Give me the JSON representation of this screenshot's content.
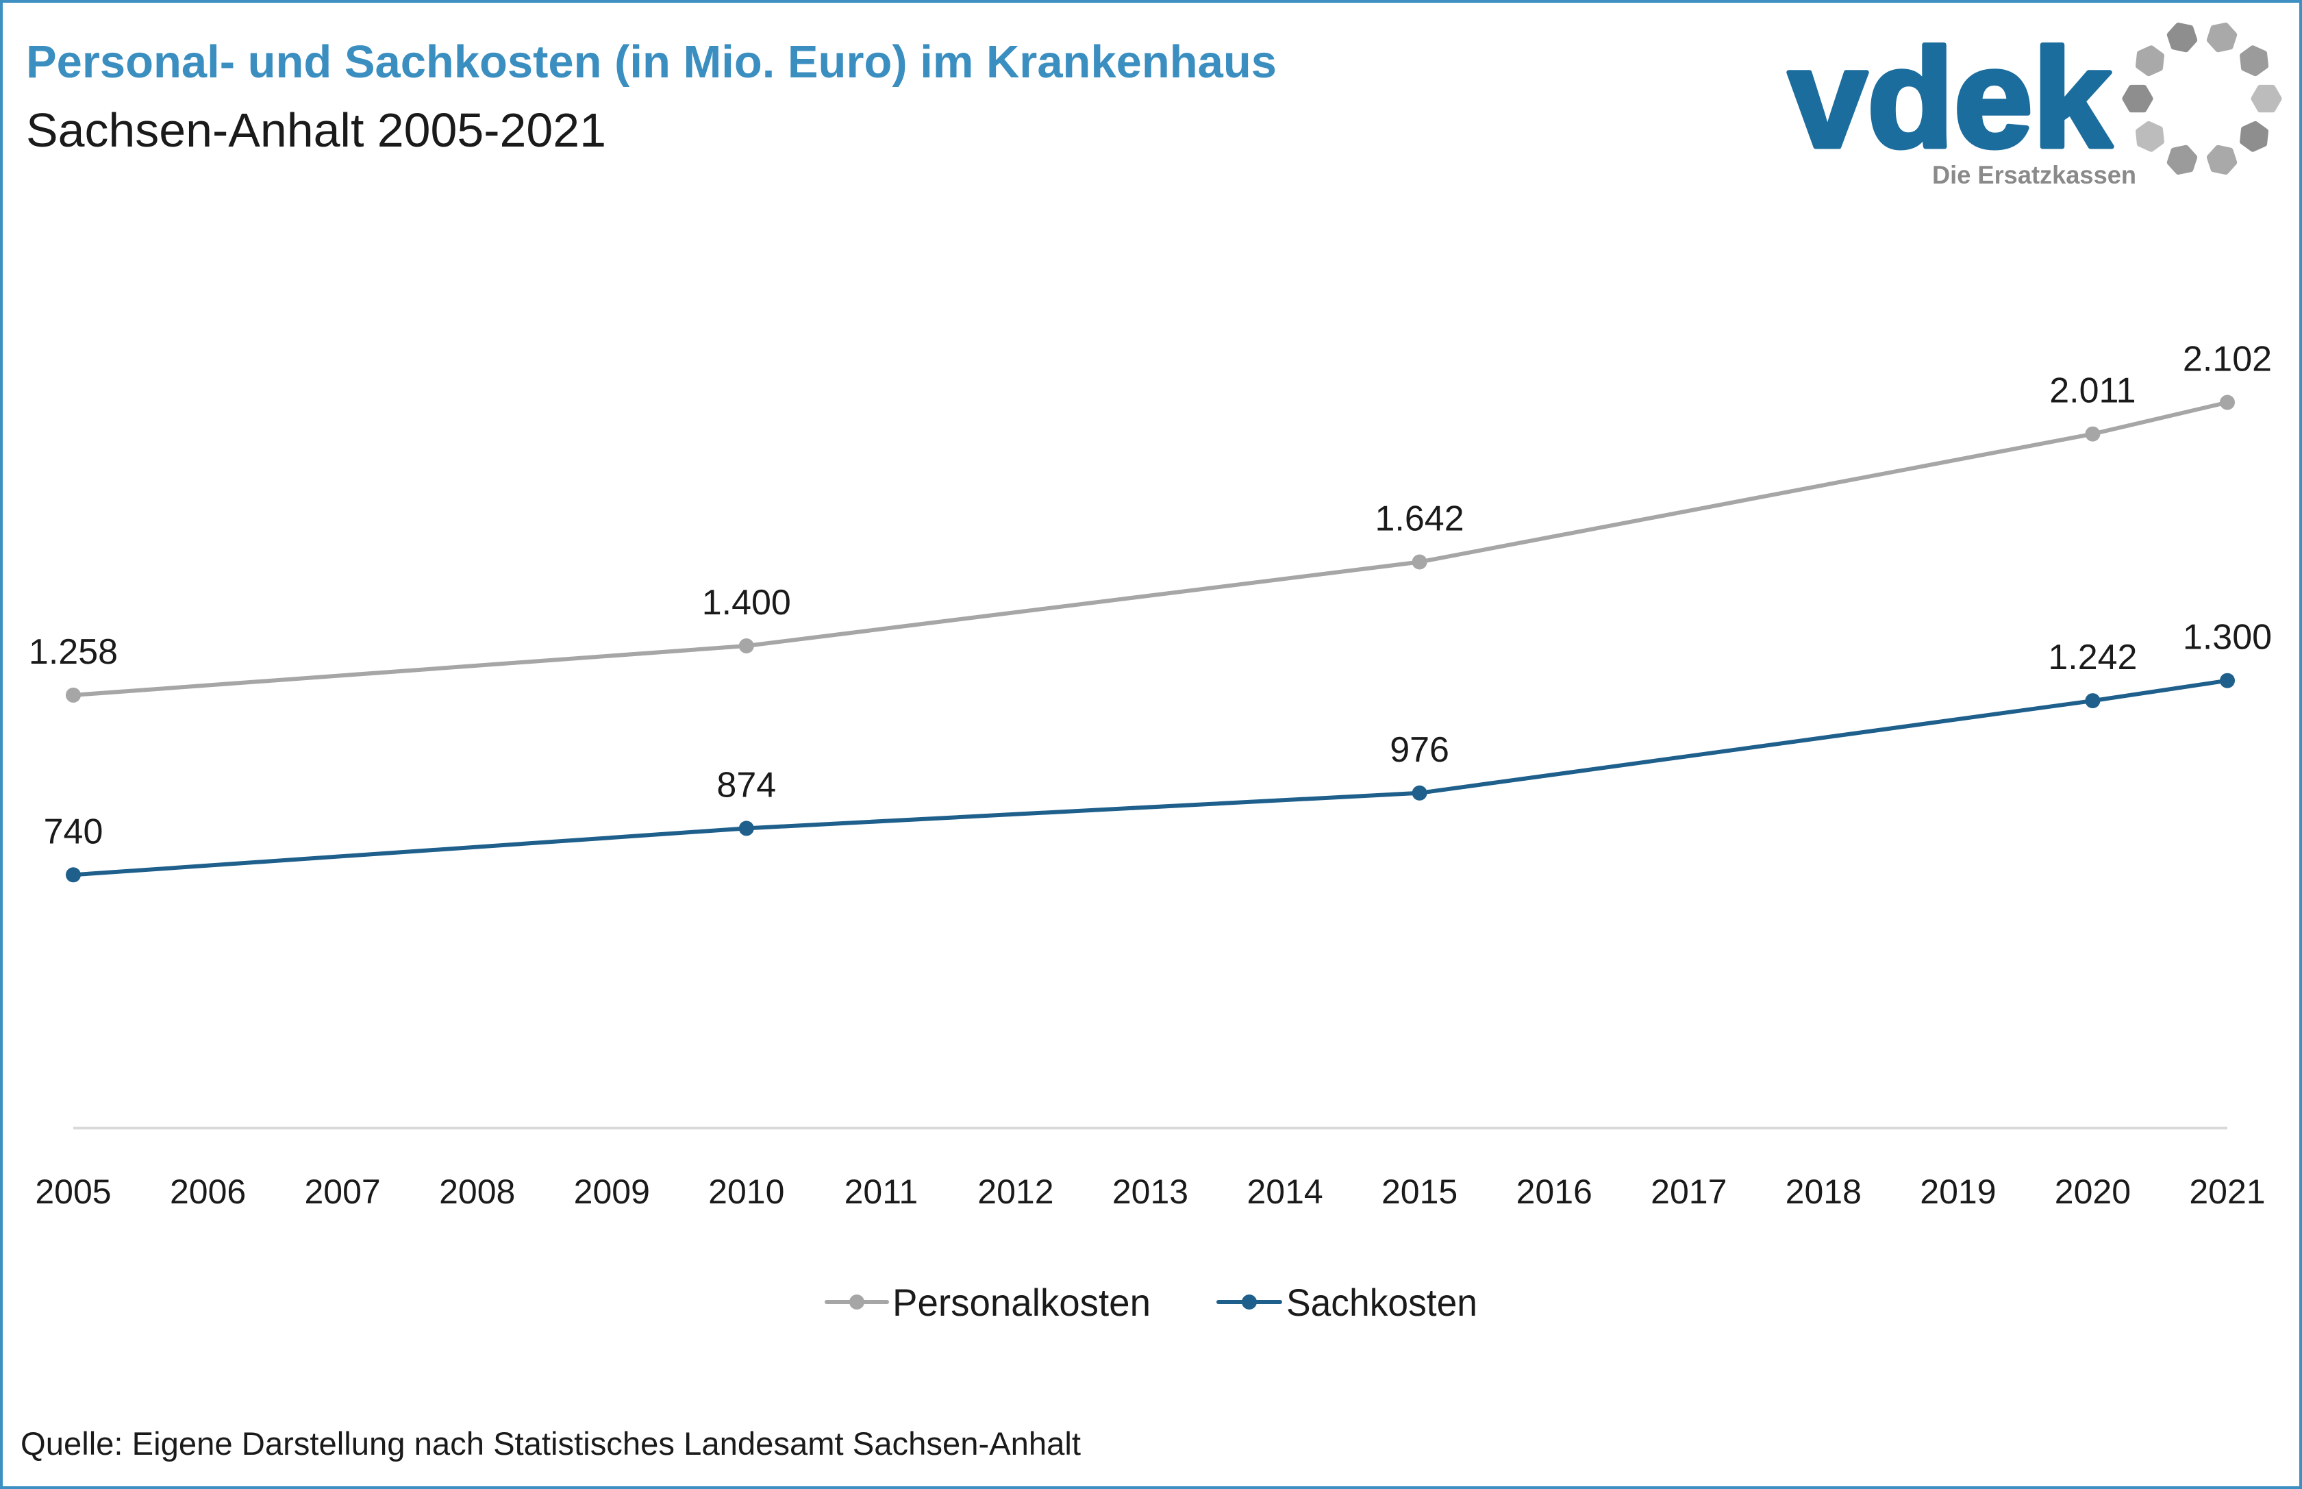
{
  "chart_data": {
    "type": "line",
    "title": "Personal- und Sachkosten (in Mio. Euro) im Krankenhaus",
    "subtitle": "Sachsen-Anhalt 2005-2021",
    "categories": [
      "2005",
      "2006",
      "2007",
      "2008",
      "2009",
      "2010",
      "2011",
      "2012",
      "2013",
      "2014",
      "2015",
      "2016",
      "2017",
      "2018",
      "2019",
      "2020",
      "2021"
    ],
    "ylim": [
      0,
      2500
    ],
    "y_axis_visible": false,
    "grid": false,
    "data_labels": true,
    "legend_position": "bottom",
    "series": [
      {
        "name": "Personalkosten",
        "color": "#a6a6a6",
        "points": [
          {
            "x": "2005",
            "y": 1258,
            "label": "1.258"
          },
          {
            "x": "2010",
            "y": 1400,
            "label": "1.400"
          },
          {
            "x": "2015",
            "y": 1642,
            "label": "1.642"
          },
          {
            "x": "2020",
            "y": 2011,
            "label": "2.011"
          },
          {
            "x": "2021",
            "y": 2102,
            "label": "2.102"
          }
        ]
      },
      {
        "name": "Sachkosten",
        "color": "#1e5f8c",
        "points": [
          {
            "x": "2005",
            "y": 740,
            "label": "740"
          },
          {
            "x": "2010",
            "y": 874,
            "label": "874"
          },
          {
            "x": "2015",
            "y": 976,
            "label": "976"
          },
          {
            "x": "2020",
            "y": 1242,
            "label": "1.242"
          },
          {
            "x": "2021",
            "y": 1300,
            "label": "1.300"
          }
        ]
      }
    ],
    "source": "Quelle: Eigene Darstellung nach Statistisches Landesamt Sachsen-Anhalt"
  },
  "logo": {
    "wordmark": "vdek",
    "tagline": "Die Ersatzkassen",
    "color": "#1b6d9e",
    "tagline_color": "#8a8a8a",
    "ring_colors": [
      "#8e8e8e",
      "#a9a9a9",
      "#9b9b9b",
      "#bcbcbc"
    ]
  },
  "colors": {
    "title": "#3a8ec0",
    "frame": "#3f90c2",
    "axis": "#d9d9d9"
  }
}
